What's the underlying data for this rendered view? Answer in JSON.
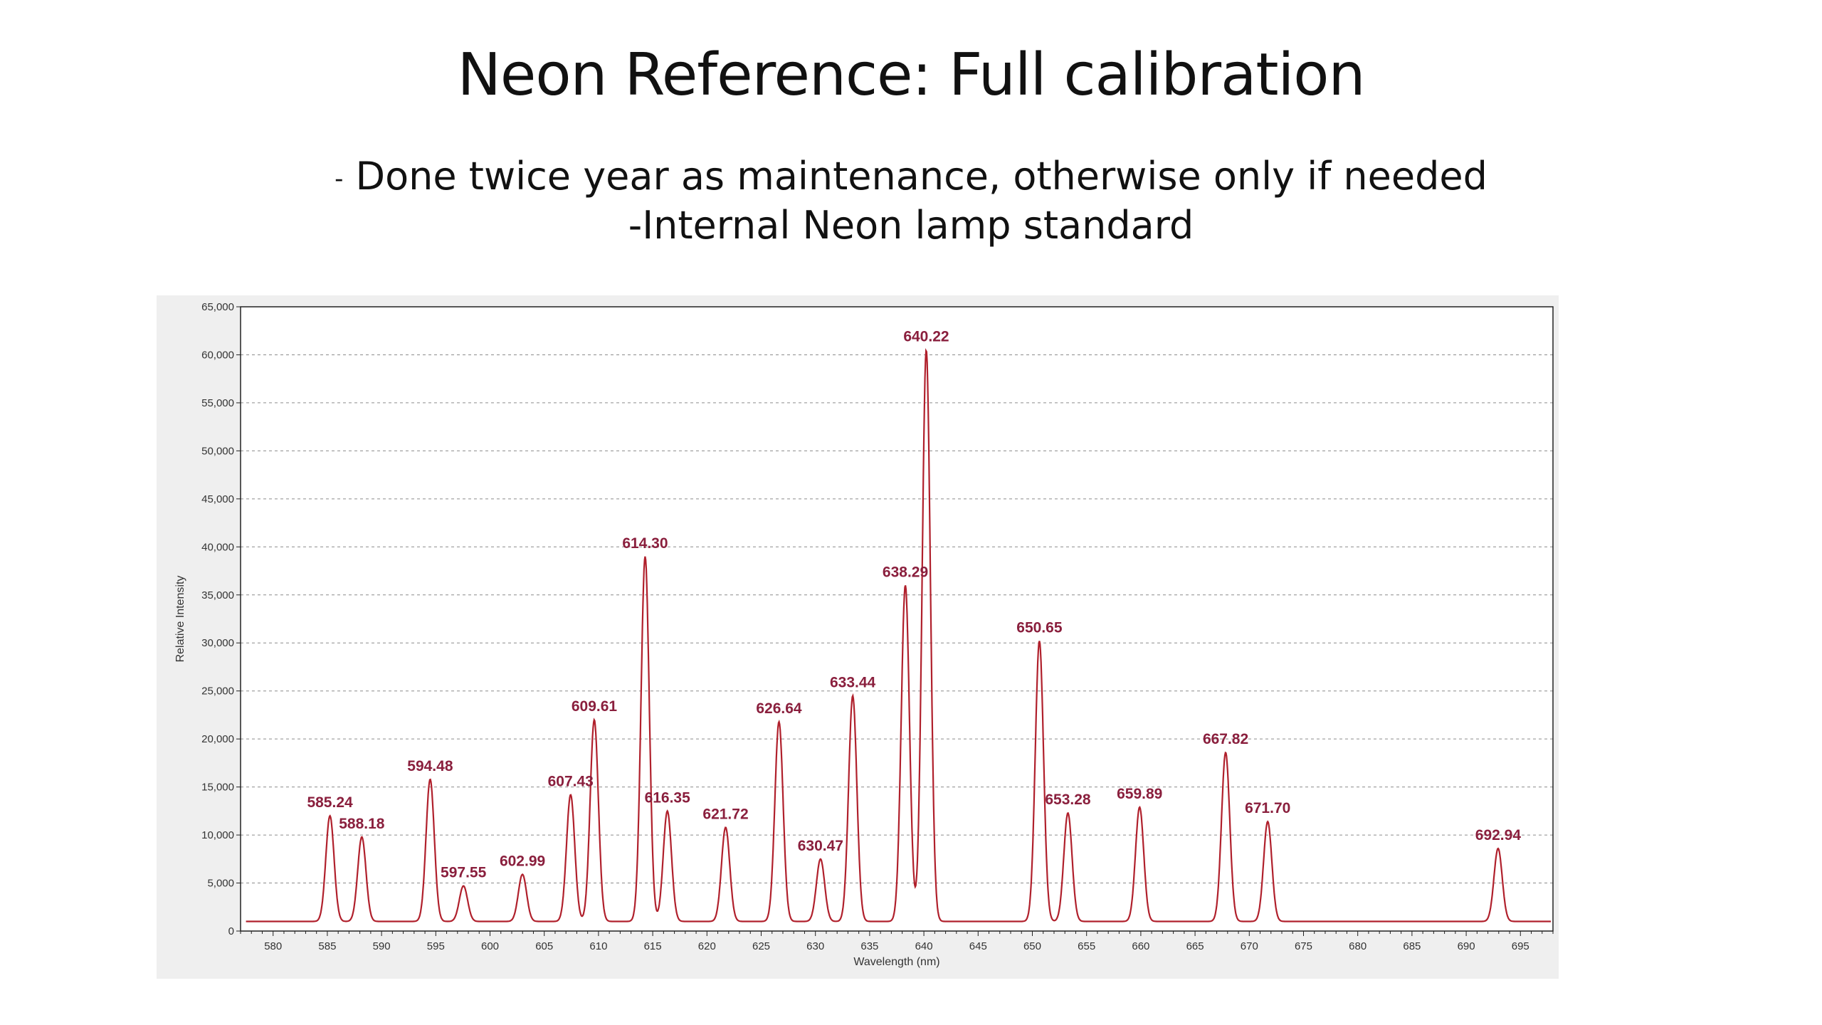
{
  "slide": {
    "title": "Neon Reference:  Full calibration",
    "bullet_1_dash": "-",
    "bullet_1_text": " Done twice year as maintenance, otherwise only if needed",
    "bullet_2": "-Internal Neon lamp standard"
  },
  "colors": {
    "series": "#b0202c",
    "peak_label": "#8a1f3d",
    "plot_bg": "#ffffff",
    "panel_bg": "#efefef",
    "grid": "#8c8c8c"
  },
  "chart_data": {
    "type": "line",
    "title": "",
    "xlabel": "Wavelength (nm)",
    "ylabel": "Relative Intensity",
    "xlim": [
      577,
      698
    ],
    "ylim": [
      0,
      65000
    ],
    "grid": true,
    "x_ticks": [
      580,
      585,
      590,
      595,
      600,
      605,
      610,
      615,
      620,
      625,
      630,
      635,
      640,
      645,
      650,
      655,
      660,
      665,
      670,
      675,
      680,
      685,
      690,
      695
    ],
    "y_ticks": [
      "0",
      "5,000",
      "10,000",
      "15,000",
      "20,000",
      "25,000",
      "30,000",
      "35,000",
      "40,000",
      "45,000",
      "50,000",
      "55,000",
      "60,000",
      "65,000"
    ],
    "baseline": 1000,
    "series": [
      {
        "peaks": [
          {
            "x": 585.24,
            "y": 12000,
            "label": "585.24"
          },
          {
            "x": 588.18,
            "y": 9800,
            "label": "588.18"
          },
          {
            "x": 594.48,
            "y": 15800,
            "label": "594.48"
          },
          {
            "x": 597.55,
            "y": 4700,
            "label": "597.55"
          },
          {
            "x": 602.99,
            "y": 5900,
            "label": "602.99"
          },
          {
            "x": 607.43,
            "y": 14200,
            "label": "607.43"
          },
          {
            "x": 609.61,
            "y": 22000,
            "label": "609.61"
          },
          {
            "x": 614.3,
            "y": 39000,
            "label": "614.30"
          },
          {
            "x": 616.35,
            "y": 12500,
            "label": "616.35"
          },
          {
            "x": 621.72,
            "y": 10800,
            "label": "621.72"
          },
          {
            "x": 626.64,
            "y": 21800,
            "label": "626.64"
          },
          {
            "x": 630.47,
            "y": 7500,
            "label": "630.47"
          },
          {
            "x": 633.44,
            "y": 24500,
            "label": "633.44"
          },
          {
            "x": 638.29,
            "y": 36000,
            "label": "638.29"
          },
          {
            "x": 640.22,
            "y": 60500,
            "label": "640.22"
          },
          {
            "x": 650.65,
            "y": 30200,
            "label": "650.65"
          },
          {
            "x": 653.28,
            "y": 12300,
            "label": "653.28"
          },
          {
            "x": 659.89,
            "y": 12900,
            "label": "659.89"
          },
          {
            "x": 667.82,
            "y": 18600,
            "label": "667.82"
          },
          {
            "x": 671.7,
            "y": 11400,
            "label": "671.70"
          },
          {
            "x": 692.94,
            "y": 8600,
            "label": "692.94"
          }
        ]
      }
    ]
  }
}
